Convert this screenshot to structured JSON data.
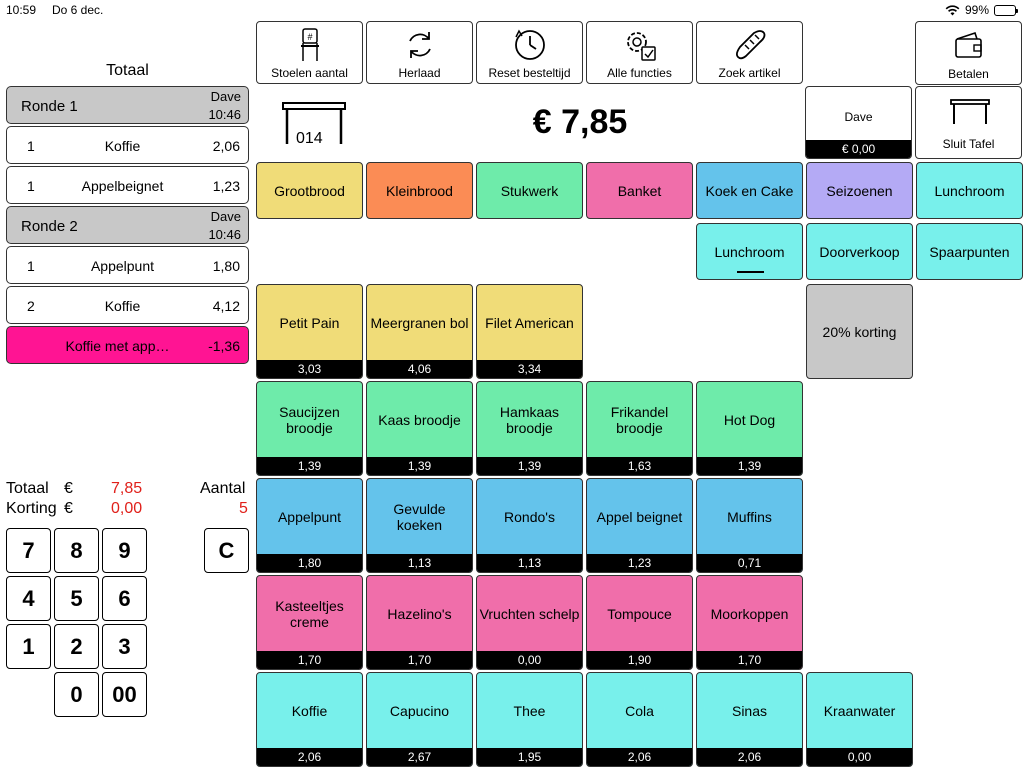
{
  "status": {
    "time": "10:59",
    "date": "Do 6 dec.",
    "battery": "99%"
  },
  "left": {
    "title": "Totaal",
    "rows": [
      {
        "kind": "round",
        "label": "Ronde 1",
        "user": "Dave",
        "time": "10:46"
      },
      {
        "kind": "item",
        "qty": "1",
        "name": "Koffie",
        "amount": "2,06"
      },
      {
        "kind": "item",
        "qty": "1",
        "name": "Appelbeignet",
        "amount": "1,23"
      },
      {
        "kind": "round",
        "label": "Ronde 2",
        "user": "Dave",
        "time": "10:46"
      },
      {
        "kind": "item",
        "qty": "1",
        "name": "Appelpunt",
        "amount": "1,80"
      },
      {
        "kind": "item",
        "qty": "2",
        "name": "Koffie",
        "amount": "4,12"
      },
      {
        "kind": "discount",
        "name": "Koffie met app…",
        "amount": "-1,36"
      }
    ],
    "summary": {
      "totaal_label": "Totaal",
      "korting_label": "Korting",
      "currency": "€",
      "totaal_value": "7,85",
      "korting_value": "0,00",
      "aantal_label": "Aantal",
      "aantal_value": "5"
    },
    "keypad": {
      "k7": "7",
      "k8": "8",
      "k9": "9",
      "k4": "4",
      "k5": "5",
      "k6": "6",
      "k1": "1",
      "k2": "2",
      "k3": "3",
      "k0": "0",
      "k00": "00",
      "clear": "C"
    }
  },
  "toolbar": {
    "stoelen": "Stoelen aantal",
    "herlaad": "Herlaad",
    "reset": "Reset besteltijd",
    "functies": "Alle functies",
    "zoek": "Zoek artikel",
    "betalen": "Betalen"
  },
  "header": {
    "table_number": "014",
    "total": "€ 7,85",
    "user_name": "Dave",
    "user_balance": "€ 0,00",
    "close_table": "Sluit Tafel"
  },
  "categories": {
    "row1": [
      "Grootbrood",
      "Kleinbrood",
      "Stukwerk",
      "Banket",
      "Koek en Cake",
      "Seizoenen",
      "Lunchroom"
    ],
    "row2": [
      "Lunchroom",
      "Doorverkoop",
      "Spaarpunten"
    ]
  },
  "products": {
    "r1": [
      {
        "name": "Petit Pain",
        "price": "3,03"
      },
      {
        "name": "Meergranen bol",
        "price": "4,06"
      },
      {
        "name": "Filet American",
        "price": "3,34"
      }
    ],
    "special": {
      "name": "20% korting"
    },
    "r2": [
      {
        "name": "Saucijzen broodje",
        "price": "1,39"
      },
      {
        "name": "Kaas broodje",
        "price": "1,39"
      },
      {
        "name": "Hamkaas broodje",
        "price": "1,39"
      },
      {
        "name": "Frikandel broodje",
        "price": "1,63"
      },
      {
        "name": "Hot Dog",
        "price": "1,39"
      }
    ],
    "r3": [
      {
        "name": "Appelpunt",
        "price": "1,80"
      },
      {
        "name": "Gevulde koeken",
        "price": "1,13"
      },
      {
        "name": "Rondo's",
        "price": "1,13"
      },
      {
        "name": "Appel beignet",
        "price": "1,23"
      },
      {
        "name": "Muffins",
        "price": "0,71"
      }
    ],
    "r4": [
      {
        "name": "Kasteeltjes creme",
        "price": "1,70"
      },
      {
        "name": "Hazelino's",
        "price": "1,70"
      },
      {
        "name": "Vruchten schelp",
        "price": "0,00"
      },
      {
        "name": "Tompouce",
        "price": "1,90"
      },
      {
        "name": "Moorkoppen",
        "price": "1,70"
      }
    ],
    "r5": [
      {
        "name": "Koffie",
        "price": "2,06"
      },
      {
        "name": "Capucino",
        "price": "2,67"
      },
      {
        "name": "Thee",
        "price": "1,95"
      },
      {
        "name": "Cola",
        "price": "2,06"
      },
      {
        "name": "Sinas",
        "price": "2,06"
      },
      {
        "name": "Kraanwater",
        "price": "0,00"
      }
    ]
  },
  "colors": {
    "yellow": "#f0dc78",
    "orange": "#fb8c55",
    "green": "#6eebaa",
    "pink": "#f06eaa",
    "blue": "#64c3eb",
    "purple": "#b4aaf5",
    "cyan": "#78f0eb",
    "grey": "#c8c8c8",
    "discount": "#ff1493",
    "red_text": "#e0201a",
    "battery": "#34c759"
  },
  "icons": [
    "wifi-icon",
    "battery-icon",
    "chair-icon",
    "reload-icon",
    "clock-icon",
    "gear-icon",
    "bread-icon",
    "wallet-icon",
    "table-icon"
  ]
}
